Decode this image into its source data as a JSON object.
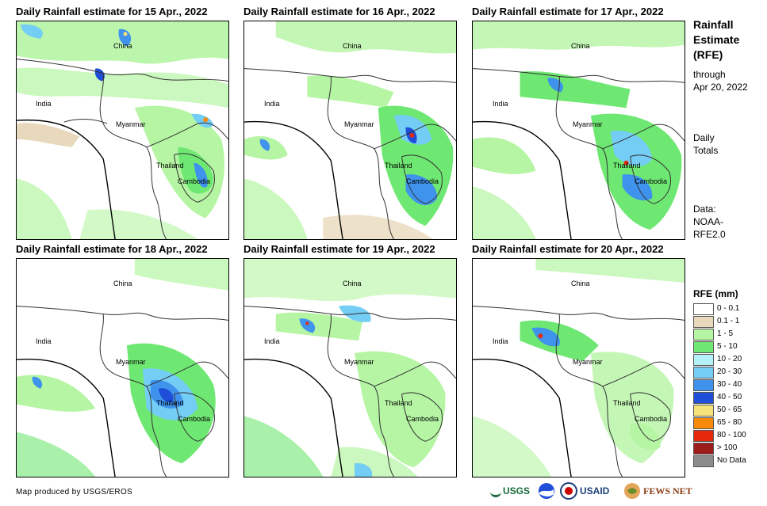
{
  "panels": [
    {
      "title": "Daily Rainfall estimate for 15 Apr., 2022"
    },
    {
      "title": "Daily Rainfall estimate for 16 Apr., 2022"
    },
    {
      "title": "Daily Rainfall estimate for 17 Apr., 2022"
    },
    {
      "title": "Daily Rainfall estimate for 18 Apr., 2022"
    },
    {
      "title": "Daily Rainfall estimate for 19 Apr., 2022"
    },
    {
      "title": "Daily Rainfall estimate for 20 Apr., 2022"
    }
  ],
  "place_labels": {
    "china": "China",
    "india": "India",
    "myanmar": "Myanmar",
    "thailand": "Thailand",
    "cambodia": "Cambodia"
  },
  "side": {
    "title": "Rainfall Estimate (RFE)",
    "through": "through",
    "date": "Apr 20, 2022",
    "daily": "Daily",
    "totals": "Totals",
    "data_label": "Data:",
    "data_source1": "NOAA-",
    "data_source2": "RFE2.0"
  },
  "legend": {
    "title": "RFE (mm)",
    "items": [
      {
        "label": "0 - 0.1",
        "color": "#ffffff"
      },
      {
        "label": "0.1 - 1",
        "color": "#e8d9bc"
      },
      {
        "label": "1 - 5",
        "color": "#b5f5a3"
      },
      {
        "label": "5 - 10",
        "color": "#6fe873"
      },
      {
        "label": "10 - 20",
        "color": "#b3f1f7"
      },
      {
        "label": "20 - 30",
        "color": "#74cdf4"
      },
      {
        "label": "30 - 40",
        "color": "#3f93ec"
      },
      {
        "label": "40 - 50",
        "color": "#1f4fd8"
      },
      {
        "label": "50 - 65",
        "color": "#f6e27a"
      },
      {
        "label": "65 - 80",
        "color": "#f58a0b"
      },
      {
        "label": "80 - 100",
        "color": "#e6280c"
      },
      {
        "label": "> 100",
        "color": "#9c1c1c"
      },
      {
        "label": "No Data",
        "color": "#8c8c8c"
      }
    ]
  },
  "footer": {
    "credit": "Map produced by USGS/EROS",
    "logo_usgs": "USGS",
    "logo_usaid": "USAID",
    "logo_fews": "FEWS NET"
  }
}
